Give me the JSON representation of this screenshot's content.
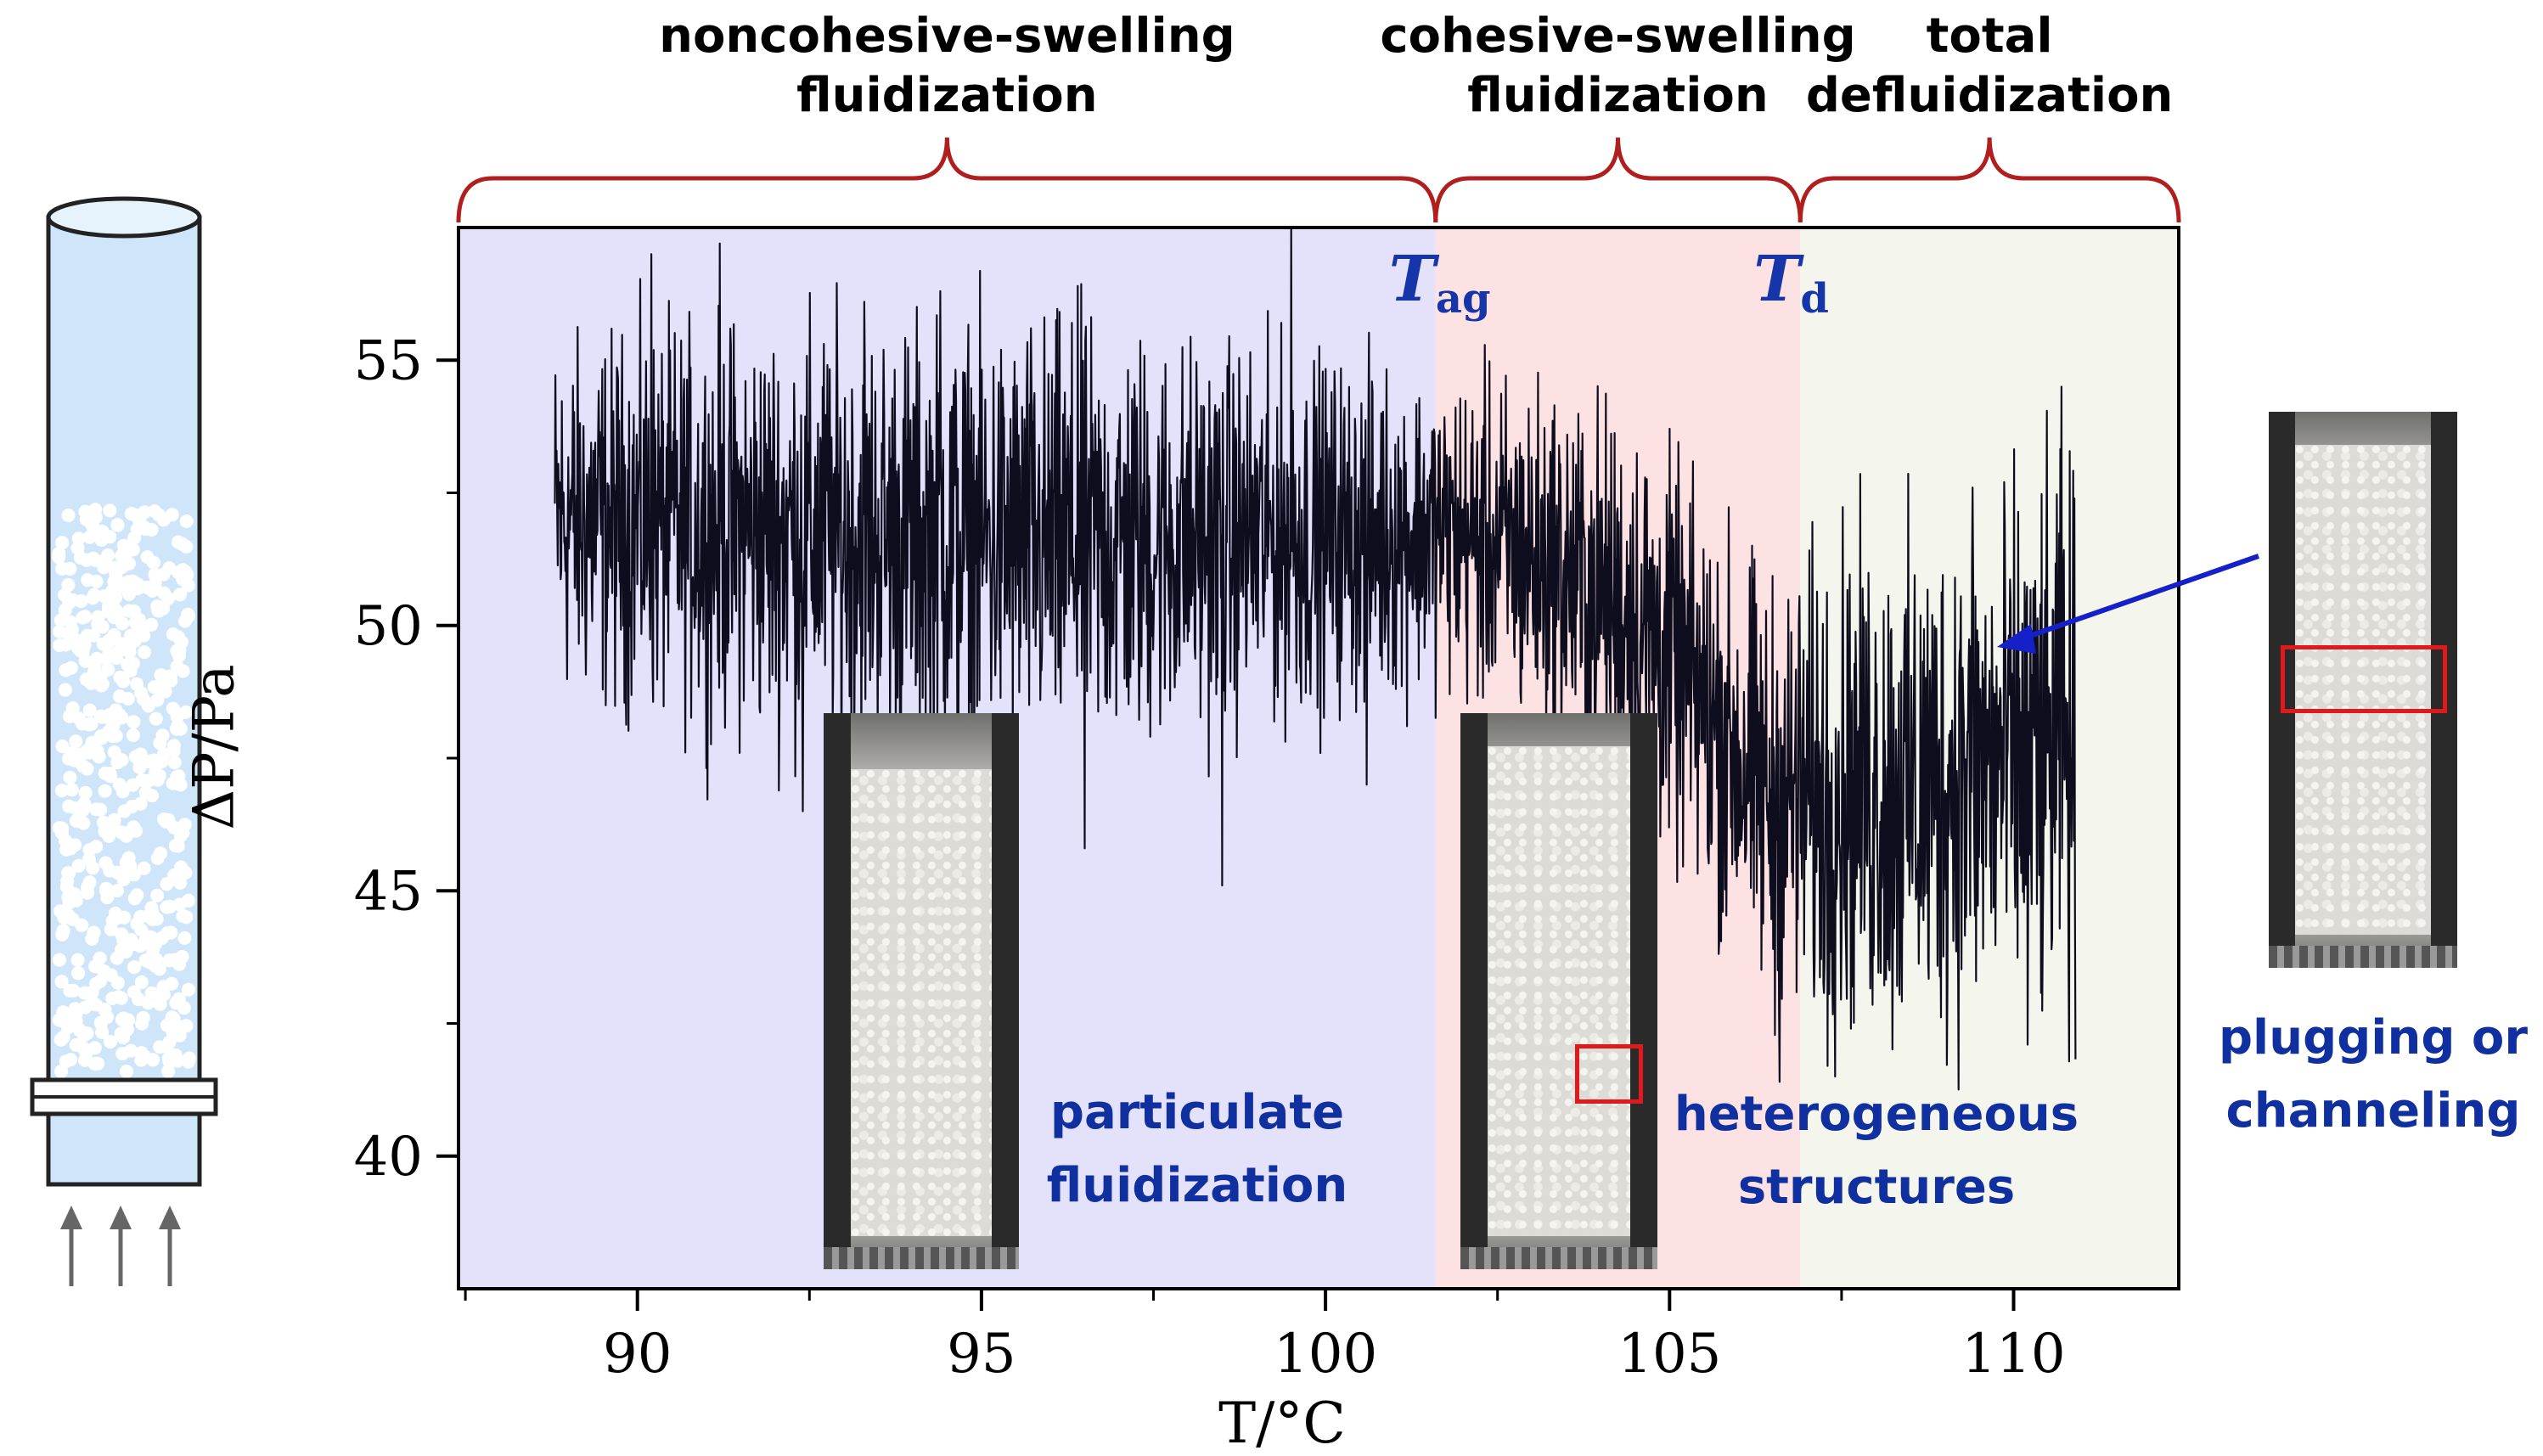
{
  "chart_data": {
    "type": "line",
    "xlabel": "T/°C",
    "ylabel": "ΔP/Pa",
    "xlim": [
      87.4,
      112.4
    ],
    "ylim": [
      37.5,
      57.5
    ],
    "xticks": [
      90,
      95,
      100,
      105,
      110
    ],
    "yticks": [
      40,
      45,
      50,
      55
    ],
    "grid": false,
    "legend": "none",
    "regions": [
      {
        "title": "noncohesive-swelling\nfluidization",
        "x_start": 87.4,
        "x_end": 101.6,
        "color": "#e4e1fb"
      },
      {
        "title": "cohesive-swelling\nfluidization",
        "x_start": 101.6,
        "x_end": 106.9,
        "color": "#fde2e4"
      },
      {
        "title": "total\ndefluidization",
        "x_start": 106.9,
        "x_end": 112.4,
        "color": "#f4f5ec"
      }
    ],
    "markers": [
      {
        "symbol": "T",
        "subscript": "ag",
        "x": 101.6
      },
      {
        "symbol": "T",
        "subscript": "d",
        "x": 106.9
      }
    ],
    "series": [
      {
        "color": "#0d0d1e",
        "envelope": [
          {
            "x": 88.8,
            "center": 52.0,
            "spread": 1.6
          },
          {
            "x": 92.0,
            "center": 51.8,
            "spread": 1.9
          },
          {
            "x": 96.0,
            "center": 51.5,
            "spread": 2.0
          },
          {
            "x": 100.0,
            "center": 51.7,
            "spread": 1.6
          },
          {
            "x": 101.6,
            "center": 51.8,
            "spread": 1.4
          },
          {
            "x": 103.0,
            "center": 51.3,
            "spread": 1.6
          },
          {
            "x": 104.5,
            "center": 50.2,
            "spread": 1.8
          },
          {
            "x": 105.5,
            "center": 48.5,
            "spread": 1.8
          },
          {
            "x": 106.5,
            "center": 46.6,
            "spread": 2.0
          },
          {
            "x": 107.5,
            "center": 47.0,
            "spread": 2.3
          },
          {
            "x": 108.5,
            "center": 46.8,
            "spread": 2.4
          },
          {
            "x": 109.5,
            "center": 47.3,
            "spread": 2.4
          },
          {
            "x": 110.9,
            "center": 47.5,
            "spread": 2.6
          }
        ],
        "extremes": [
          {
            "x": 90.2,
            "y": 57.0
          },
          {
            "x": 91.2,
            "y": 57.2
          },
          {
            "x": 93.3,
            "y": 56.1
          },
          {
            "x": 94.4,
            "y": 56.3
          },
          {
            "x": 96.4,
            "y": 56.4
          },
          {
            "x": 99.5,
            "y": 57.5
          },
          {
            "x": 92.4,
            "y": 46.5
          },
          {
            "x": 96.5,
            "y": 45.8
          },
          {
            "x": 98.5,
            "y": 45.1
          },
          {
            "x": 100.6,
            "y": 47.0
          },
          {
            "x": 106.6,
            "y": 41.4
          },
          {
            "x": 107.3,
            "y": 41.7
          },
          {
            "x": 109.4,
            "y": 52.6
          },
          {
            "x": 110.7,
            "y": 54.5
          },
          {
            "x": 108.2,
            "y": 43.5
          },
          {
            "x": 110.2,
            "y": 42.1
          }
        ]
      }
    ]
  },
  "insets": {
    "photo_labels": [
      {
        "text": "particulate\nfluidization"
      },
      {
        "text": "heterogeneous\nstructures"
      },
      {
        "text": "plugging or\nchanneling"
      }
    ]
  },
  "colors": {
    "bracket": "#b01e1e",
    "label_blue": "#1030a0",
    "highlight_box": "#e01a1a",
    "arrow": "#1620c8",
    "column_fill": "#cfe6fa",
    "column_stroke": "#222222",
    "gas_arrow": "#666666"
  },
  "icons": {
    "column": "fluidized-bed-column-icon",
    "gas_flow": "upward-arrow-icon"
  }
}
